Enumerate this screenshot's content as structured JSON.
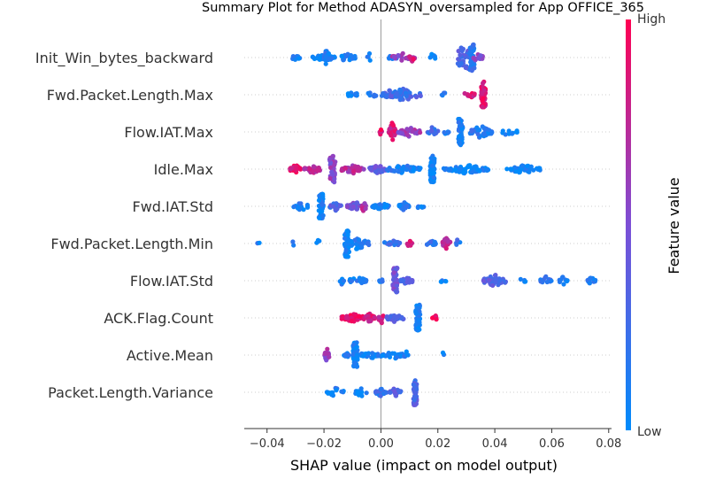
{
  "chart_data": {
    "type": "scatter",
    "title": "Summary Plot for Method ADASYN_oversampled for App OFFICE_365",
    "xlabel": "SHAP value (impact on model output)",
    "xlim": [
      -0.048,
      0.081
    ],
    "xticks": [
      -0.04,
      -0.02,
      0.0,
      0.02,
      0.04,
      0.06,
      0.08
    ],
    "xtick_labels": [
      "−0.04",
      "−0.02",
      "0.00",
      "0.02",
      "0.04",
      "0.06",
      "0.08"
    ],
    "features": [
      {
        "name": "Init_Win_bytes_backward",
        "clusters": [
          {
            "x": -0.03,
            "w": 0.0015,
            "n": 8,
            "c": 0.1
          },
          {
            "x": -0.02,
            "w": 0.004,
            "n": 40,
            "c": 0.05
          },
          {
            "x": -0.019,
            "w": 0.0012,
            "n": 20,
            "c": 0.12,
            "spread": 0.7
          },
          {
            "x": -0.012,
            "w": 0.003,
            "n": 20,
            "c": 0.08
          },
          {
            "x": -0.004,
            "w": 0.0008,
            "n": 4,
            "c": 0.1
          },
          {
            "x": 0.004,
            "w": 0.0015,
            "n": 8,
            "c": 0.1
          },
          {
            "x": 0.008,
            "w": 0.004,
            "n": 22,
            "c": 0.6
          },
          {
            "x": 0.011,
            "w": 0.001,
            "n": 6,
            "c": 0.9
          },
          {
            "x": 0.018,
            "w": 0.0012,
            "n": 6,
            "c": 0.1
          },
          {
            "x": 0.029,
            "w": 0.002,
            "n": 24,
            "c": 0.3,
            "spread": 0.9
          },
          {
            "x": 0.032,
            "w": 0.0008,
            "n": 40,
            "c": 0.15,
            "spread": 1.0
          },
          {
            "x": 0.034,
            "w": 0.002,
            "n": 14,
            "c": 0.5
          }
        ]
      },
      {
        "name": "Fwd.Packet.Length.Max",
        "clusters": [
          {
            "x": -0.01,
            "w": 0.0018,
            "n": 14,
            "c": 0.08
          },
          {
            "x": -0.003,
            "w": 0.0015,
            "n": 8,
            "c": 0.1
          },
          {
            "x": 0.003,
            "w": 0.003,
            "n": 26,
            "c": 0.3
          },
          {
            "x": 0.008,
            "w": 0.003,
            "n": 36,
            "c": 0.25,
            "spread": 0.8
          },
          {
            "x": 0.013,
            "w": 0.001,
            "n": 6,
            "c": 0.3
          },
          {
            "x": 0.022,
            "w": 0.0008,
            "n": 4,
            "c": 0.1
          },
          {
            "x": 0.031,
            "w": 0.002,
            "n": 12,
            "c": 0.85
          },
          {
            "x": 0.036,
            "w": 0.0008,
            "n": 60,
            "c": 0.88,
            "spread": 1.0
          }
        ]
      },
      {
        "name": "Flow.IAT.Max",
        "clusters": [
          {
            "x": 0.0,
            "w": 0.0005,
            "n": 4,
            "c": 0.9
          },
          {
            "x": 0.004,
            "w": 0.0012,
            "n": 30,
            "c": 0.85,
            "spread": 0.8
          },
          {
            "x": 0.01,
            "w": 0.004,
            "n": 40,
            "c": 0.6
          },
          {
            "x": 0.018,
            "w": 0.002,
            "n": 14,
            "c": 0.25
          },
          {
            "x": 0.023,
            "w": 0.0008,
            "n": 6,
            "c": 0.1
          },
          {
            "x": 0.028,
            "w": 0.0008,
            "n": 50,
            "c": 0.12,
            "spread": 1.0
          },
          {
            "x": 0.035,
            "w": 0.004,
            "n": 40,
            "c": 0.15,
            "spread": 0.5
          },
          {
            "x": 0.045,
            "w": 0.003,
            "n": 12,
            "c": 0.08
          }
        ]
      },
      {
        "name": "Idle.Max",
        "clusters": [
          {
            "x": -0.03,
            "w": 0.002,
            "n": 20,
            "c": 0.9
          },
          {
            "x": -0.024,
            "w": 0.003,
            "n": 30,
            "c": 0.7
          },
          {
            "x": -0.017,
            "w": 0.001,
            "n": 40,
            "c": 0.55,
            "spread": 1.0
          },
          {
            "x": -0.01,
            "w": 0.004,
            "n": 40,
            "c": 0.7
          },
          {
            "x": -0.001,
            "w": 0.003,
            "n": 30,
            "c": 0.4
          },
          {
            "x": 0.008,
            "w": 0.006,
            "n": 50,
            "c": 0.1
          },
          {
            "x": 0.018,
            "w": 0.0008,
            "n": 60,
            "c": 0.05,
            "spread": 1.0
          },
          {
            "x": 0.03,
            "w": 0.008,
            "n": 70,
            "c": 0.05
          },
          {
            "x": 0.05,
            "w": 0.006,
            "n": 40,
            "c": 0.05
          }
        ]
      },
      {
        "name": "Fwd.IAT.Std",
        "clusters": [
          {
            "x": -0.028,
            "w": 0.003,
            "n": 16,
            "c": 0.08
          },
          {
            "x": -0.021,
            "w": 0.0008,
            "n": 50,
            "c": 0.08,
            "spread": 1.0
          },
          {
            "x": -0.016,
            "w": 0.002,
            "n": 20,
            "c": 0.3
          },
          {
            "x": -0.009,
            "w": 0.003,
            "n": 30,
            "c": 0.45
          },
          {
            "x": -0.006,
            "w": 0.0008,
            "n": 14,
            "c": 0.7,
            "spread": 0.6
          },
          {
            "x": 0.0,
            "w": 0.003,
            "n": 30,
            "c": 0.1
          },
          {
            "x": 0.008,
            "w": 0.002,
            "n": 20,
            "c": 0.1
          },
          {
            "x": 0.014,
            "w": 0.0012,
            "n": 6,
            "c": 0.1
          }
        ]
      },
      {
        "name": "Fwd.Packet.Length.Min",
        "clusters": [
          {
            "x": -0.043,
            "w": 0.0005,
            "n": 2,
            "c": 0.1
          },
          {
            "x": -0.031,
            "w": 0.0005,
            "n": 2,
            "c": 0.1
          },
          {
            "x": -0.022,
            "w": 0.0008,
            "n": 3,
            "c": 0.1
          },
          {
            "x": -0.012,
            "w": 0.0008,
            "n": 60,
            "c": 0.06,
            "spread": 1.0
          },
          {
            "x": -0.008,
            "w": 0.004,
            "n": 30,
            "c": 0.1,
            "spread": 0.5
          },
          {
            "x": 0.004,
            "w": 0.003,
            "n": 16,
            "c": 0.2
          },
          {
            "x": 0.01,
            "w": 0.001,
            "n": 6,
            "c": 0.9
          },
          {
            "x": 0.018,
            "w": 0.002,
            "n": 14,
            "c": 0.2
          },
          {
            "x": 0.023,
            "w": 0.0015,
            "n": 20,
            "c": 0.75,
            "spread": 0.5
          },
          {
            "x": 0.027,
            "w": 0.0008,
            "n": 4,
            "c": 0.2
          }
        ]
      },
      {
        "name": "Flow.IAT.Std",
        "clusters": [
          {
            "x": -0.014,
            "w": 0.001,
            "n": 6,
            "c": 0.1
          },
          {
            "x": -0.008,
            "w": 0.003,
            "n": 20,
            "c": 0.1
          },
          {
            "x": 0.0,
            "w": 0.001,
            "n": 6,
            "c": 0.1
          },
          {
            "x": 0.005,
            "w": 0.0008,
            "n": 50,
            "c": 0.45,
            "spread": 1.0
          },
          {
            "x": 0.009,
            "w": 0.002,
            "n": 20,
            "c": 0.3
          },
          {
            "x": 0.022,
            "w": 0.001,
            "n": 6,
            "c": 0.1
          },
          {
            "x": 0.04,
            "w": 0.004,
            "n": 40,
            "c": 0.35,
            "spread": 0.5
          },
          {
            "x": 0.05,
            "w": 0.001,
            "n": 4,
            "c": 0.1
          },
          {
            "x": 0.058,
            "w": 0.002,
            "n": 14,
            "c": 0.2
          },
          {
            "x": 0.064,
            "w": 0.002,
            "n": 10,
            "c": 0.15
          },
          {
            "x": 0.074,
            "w": 0.0015,
            "n": 12,
            "c": 0.1
          }
        ]
      },
      {
        "name": "ACK.Flag.Count",
        "clusters": [
          {
            "x": -0.01,
            "w": 0.004,
            "n": 50,
            "c": 0.92
          },
          {
            "x": -0.004,
            "w": 0.002,
            "n": 30,
            "c": 0.85
          },
          {
            "x": 0.0,
            "w": 0.0008,
            "n": 14,
            "c": 0.8,
            "spread": 0.7
          },
          {
            "x": 0.005,
            "w": 0.003,
            "n": 30,
            "c": 0.3
          },
          {
            "x": 0.013,
            "w": 0.0008,
            "n": 50,
            "c": 0.05,
            "spread": 1.0
          },
          {
            "x": 0.019,
            "w": 0.001,
            "n": 8,
            "c": 0.9
          }
        ]
      },
      {
        "name": "Active.Mean",
        "clusters": [
          {
            "x": -0.019,
            "w": 0.0008,
            "n": 20,
            "c": 0.6,
            "spread": 0.6
          },
          {
            "x": -0.012,
            "w": 0.001,
            "n": 8,
            "c": 0.1
          },
          {
            "x": -0.009,
            "w": 0.0008,
            "n": 60,
            "c": 0.06,
            "spread": 1.0
          },
          {
            "x": -0.004,
            "w": 0.003,
            "n": 30,
            "c": 0.08
          },
          {
            "x": 0.004,
            "w": 0.004,
            "n": 30,
            "c": 0.08
          },
          {
            "x": 0.009,
            "w": 0.001,
            "n": 6,
            "c": 0.08
          },
          {
            "x": 0.022,
            "w": 0.0005,
            "n": 2,
            "c": 0.1
          }
        ]
      },
      {
        "name": "Packet.Length.Variance",
        "clusters": [
          {
            "x": -0.016,
            "w": 0.003,
            "n": 16,
            "c": 0.08
          },
          {
            "x": -0.007,
            "w": 0.002,
            "n": 14,
            "c": 0.1
          },
          {
            "x": 0.0,
            "w": 0.002,
            "n": 20,
            "c": 0.2
          },
          {
            "x": 0.005,
            "w": 0.002,
            "n": 24,
            "c": 0.35
          },
          {
            "x": 0.012,
            "w": 0.0006,
            "n": 60,
            "c": 0.3,
            "spread": 1.0
          }
        ]
      }
    ],
    "colorbar": {
      "label": "Feature value",
      "high_label": "High",
      "low_label": "Low",
      "low_color": "#008bfb",
      "mid_color": "#7c4fd6",
      "high_color": "#ff0052"
    },
    "zero_line_color": "#999999",
    "grid": false
  }
}
